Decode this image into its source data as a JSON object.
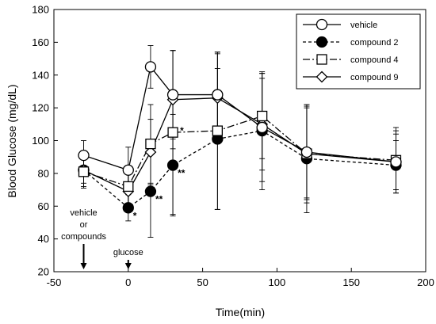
{
  "chart_data": {
    "type": "line",
    "title": "",
    "xlabel": "Time(min)",
    "ylabel": "Blood Glucose (mg/dL)",
    "xlim": [
      -50,
      200
    ],
    "ylim": [
      20,
      180
    ],
    "xticks": [
      -50,
      0,
      50,
      100,
      150,
      200
    ],
    "yticks": [
      20,
      40,
      60,
      80,
      100,
      120,
      140,
      160,
      180
    ],
    "x": [
      -30,
      0,
      15,
      30,
      60,
      90,
      120,
      180
    ],
    "legend_position": "top-right",
    "grid": false,
    "series": [
      {
        "name": "vehicle",
        "values": [
          91,
          82,
          145,
          128,
          128,
          108,
          93,
          87
        ],
        "errors": [
          9,
          14,
          13,
          27,
          25,
          33,
          28,
          17
        ],
        "marker": "circle-open",
        "dash": "solid"
      },
      {
        "name": "compound 2",
        "values": [
          82,
          59,
          69,
          85,
          101,
          106,
          89,
          85
        ],
        "errors": [
          8,
          8,
          28,
          31,
          43,
          36,
          33,
          15
        ],
        "marker": "circle-filled",
        "dash": "dashed"
      },
      {
        "name": "compound 4",
        "values": [
          81,
          72,
          98,
          105,
          106,
          115,
          92,
          88
        ],
        "errors": [
          10,
          12,
          24,
          50,
          48,
          26,
          30,
          20
        ],
        "marker": "square-open",
        "dash": "dashdot"
      },
      {
        "name": "compound 9",
        "values": [
          82,
          69,
          93,
          125,
          126,
          110,
          92,
          87
        ],
        "errors": [
          10,
          12,
          20,
          30,
          28,
          28,
          28,
          19
        ],
        "marker": "diamond-open",
        "dash": "solid"
      }
    ],
    "significance": [
      {
        "x": 0,
        "y": 59,
        "label": "*"
      },
      {
        "x": 15,
        "y": 69,
        "label": "**"
      },
      {
        "x": 30,
        "y": 85,
        "label": "**"
      },
      {
        "x": 30,
        "y": 105,
        "label": "*"
      }
    ],
    "annotations": [
      {
        "x": -30,
        "lines": [
          "vehicle",
          "or",
          "compounds"
        ]
      },
      {
        "x": 0,
        "lines": [
          "glucose"
        ]
      }
    ]
  }
}
